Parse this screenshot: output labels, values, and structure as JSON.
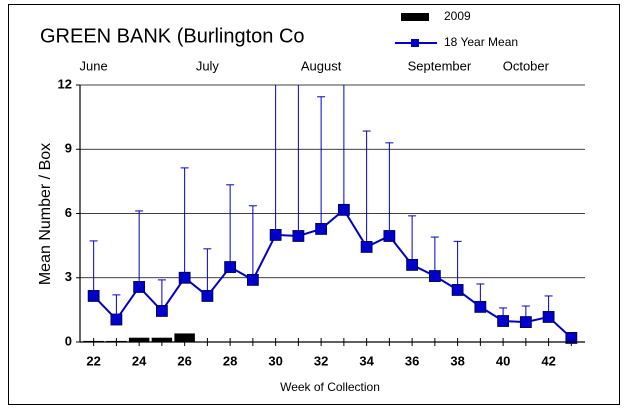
{
  "chart_data": {
    "type": "line",
    "title": "GREEN BANK (Burlington Co",
    "xlabel": "Week of Collection",
    "ylabel": "Mean Number / Box",
    "xlim": [
      21.4,
      43.6
    ],
    "ylim": [
      0,
      12
    ],
    "xticks": [
      22,
      24,
      26,
      28,
      30,
      32,
      34,
      36,
      38,
      40,
      42
    ],
    "xminorticks": [
      22,
      23,
      24,
      25,
      26,
      27,
      28,
      29,
      30,
      31,
      32,
      33,
      34,
      35,
      36,
      37,
      38,
      39,
      40,
      41,
      42,
      43
    ],
    "yticks": [
      0,
      3,
      6,
      9,
      12
    ],
    "grid": true,
    "month_ticks": [
      {
        "value": 22,
        "label": "June"
      },
      {
        "value": 27,
        "label": "July"
      },
      {
        "value": 32,
        "label": "August"
      },
      {
        "value": 37.2,
        "label": "September"
      },
      {
        "value": 41,
        "label": "October"
      }
    ],
    "series": [
      {
        "name": "2009",
        "kind": "bar",
        "color": "#000000",
        "x": [
          22,
          23,
          24,
          25,
          26
        ],
        "values": [
          0.05,
          0.05,
          0.2,
          0.2,
          0.4
        ]
      },
      {
        "name": "18 Year Mean",
        "kind": "line",
        "color": "#0000cc",
        "x": [
          22,
          23,
          24,
          25,
          26,
          27,
          28,
          29,
          30,
          31,
          32,
          33,
          34,
          35,
          36,
          37,
          38,
          39,
          40,
          41,
          42,
          43
        ],
        "values": [
          2.15,
          1.05,
          2.57,
          1.45,
          3.0,
          2.15,
          3.5,
          2.9,
          5.0,
          4.95,
          5.28,
          6.17,
          4.44,
          4.95,
          3.6,
          3.08,
          2.43,
          1.64,
          0.98,
          0.93,
          1.17,
          0.19
        ],
        "errors": [
          2.57,
          1.15,
          3.55,
          1.45,
          5.13,
          2.2,
          3.84,
          3.46,
          9,
          9,
          6.17,
          7,
          5.41,
          4.35,
          2.29,
          1.82,
          2.27,
          1.07,
          0.61,
          0.75,
          0.98,
          null
        ]
      }
    ]
  }
}
